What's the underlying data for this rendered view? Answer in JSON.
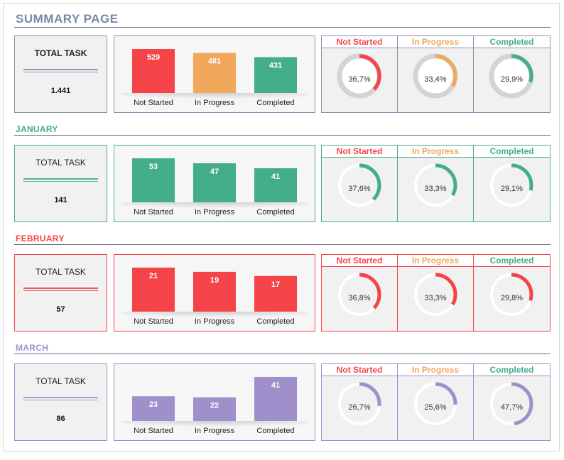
{
  "page_title": "SUMMARY PAGE",
  "colors": {
    "not_started": "#f44448",
    "in_progress": "#f1a85a",
    "completed": "#44ad8a",
    "summary": "#8a90ad",
    "january": "#44ad8a",
    "february": "#f44448",
    "march": "#9f90cc",
    "title": "#7a86a6",
    "ring_track": "#dddddd"
  },
  "sections": [
    {
      "key": "summary",
      "title": "",
      "total_label": "TOTAL TASK",
      "total_value": "1.441",
      "categories": [
        "Not Started",
        "In Progress",
        "Completed"
      ],
      "values": [
        529,
        481,
        431
      ],
      "value_labels": [
        "529",
        "481",
        "431"
      ],
      "bar_colors": [
        "#f44448",
        "#f1a85a",
        "#44ad8a"
      ],
      "headers": [
        "Not Started",
        "In Progress",
        "Completed"
      ],
      "percents": [
        36.7,
        33.4,
        29.9
      ],
      "percent_labels": [
        "36,7%",
        "33,4%",
        "29,9%"
      ],
      "ring_colors": [
        "#f44448",
        "#f1a85a",
        "#44ad8a"
      ]
    },
    {
      "key": "january",
      "title": "JANUARY",
      "total_label": "TOTAL TASK",
      "total_value": "141",
      "categories": [
        "Not Started",
        "In Progress",
        "Completed"
      ],
      "values": [
        53,
        47,
        41
      ],
      "value_labels": [
        "53",
        "47",
        "41"
      ],
      "bar_colors": [
        "#44ad8a",
        "#44ad8a",
        "#44ad8a"
      ],
      "headers": [
        "Not Started",
        "In Progress",
        "Completed"
      ],
      "percents": [
        37.6,
        33.3,
        29.1
      ],
      "percent_labels": [
        "37,6%",
        "33,3%",
        "29,1%"
      ],
      "ring_colors": [
        "#44ad8a",
        "#44ad8a",
        "#44ad8a"
      ]
    },
    {
      "key": "february",
      "title": "FEBRUARY",
      "total_label": "TOTAL TASK",
      "total_value": "57",
      "categories": [
        "Not Started",
        "In Progress",
        "Completed"
      ],
      "values": [
        21,
        19,
        17
      ],
      "value_labels": [
        "21",
        "19",
        "17"
      ],
      "bar_colors": [
        "#f44448",
        "#f44448",
        "#f44448"
      ],
      "headers": [
        "Not Started",
        "In Progress",
        "Completed"
      ],
      "percents": [
        36.8,
        33.3,
        29.8
      ],
      "percent_labels": [
        "36,8%",
        "33,3%",
        "29,8%"
      ],
      "ring_colors": [
        "#f44448",
        "#f44448",
        "#f44448"
      ]
    },
    {
      "key": "march",
      "title": "MARCH",
      "total_label": "TOTAL TASK",
      "total_value": "86",
      "categories": [
        "Not Started",
        "In Progress",
        "Completed"
      ],
      "values": [
        23,
        22,
        41
      ],
      "value_labels": [
        "23",
        "22",
        "41"
      ],
      "bar_colors": [
        "#9f90cc",
        "#9f90cc",
        "#9f90cc"
      ],
      "headers": [
        "Not Started",
        "In Progress",
        "Completed"
      ],
      "percents": [
        26.7,
        25.6,
        47.7
      ],
      "percent_labels": [
        "26,7%",
        "25,6%",
        "47,7%"
      ],
      "ring_colors": [
        "#9f90cc",
        "#9f90cc",
        "#9f90cc"
      ]
    }
  ],
  "chart_data": [
    {
      "type": "bar",
      "title": "",
      "categories": [
        "Not Started",
        "In Progress",
        "Completed"
      ],
      "values": [
        529,
        481,
        431
      ]
    },
    {
      "type": "bar",
      "title": "",
      "categories": [
        "Not Started",
        "In Progress",
        "Completed"
      ],
      "values": [
        53,
        47,
        41
      ]
    },
    {
      "type": "bar",
      "title": "",
      "categories": [
        "Not Started",
        "In Progress",
        "Completed"
      ],
      "values": [
        21,
        19,
        17
      ]
    },
    {
      "type": "bar",
      "title": "",
      "categories": [
        "Not Started",
        "In Progress",
        "Completed"
      ],
      "values": [
        23,
        22,
        41
      ]
    }
  ]
}
